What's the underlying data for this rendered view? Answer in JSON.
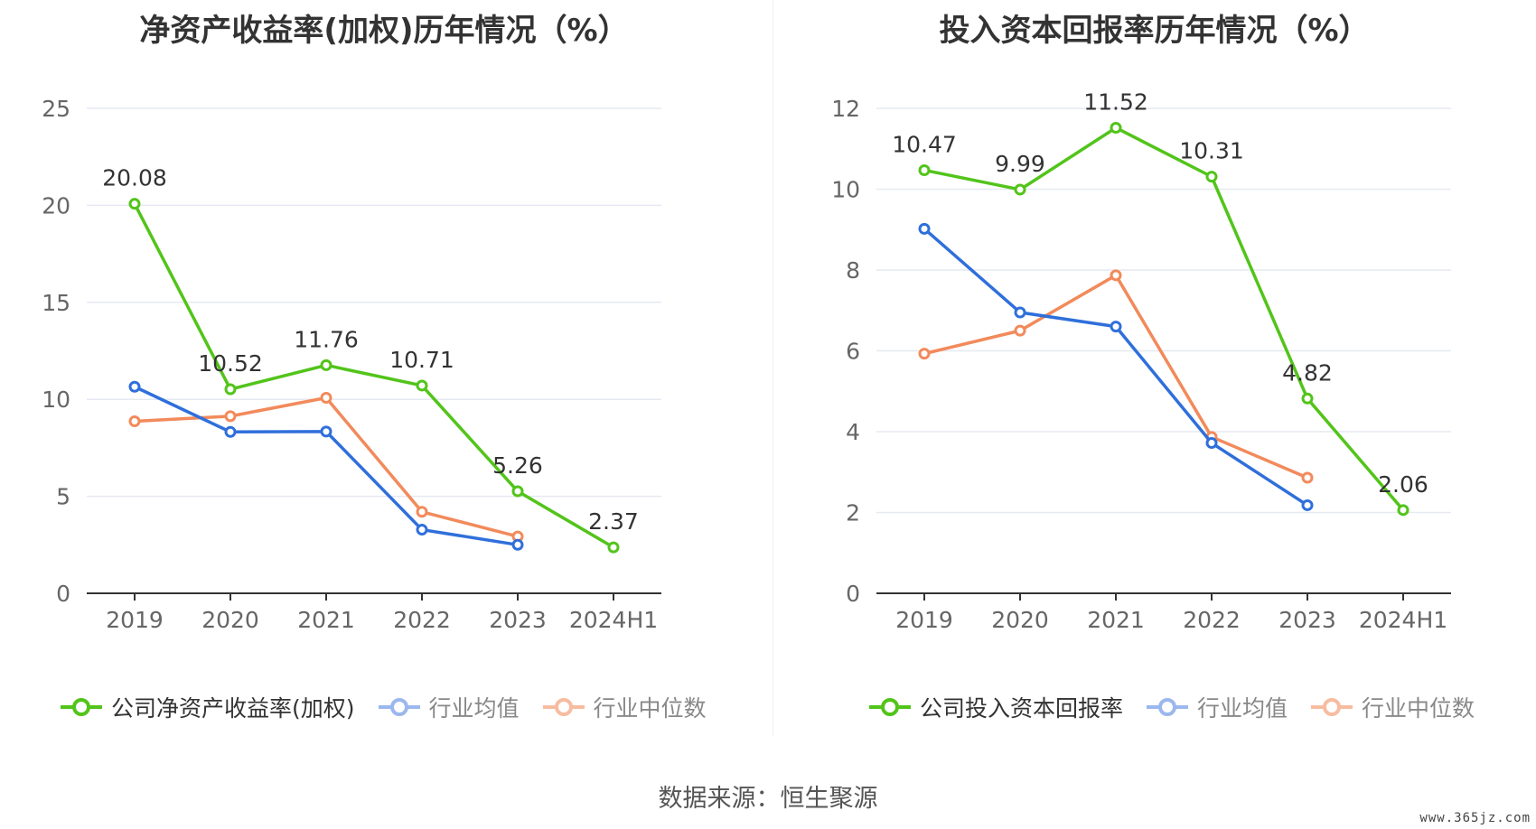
{
  "colors": {
    "company": "#52c41a",
    "avg": "#2f6fdb",
    "median": "#f28a5b",
    "grid": "#e6e9f2",
    "axis": "#333333",
    "tick": "#666666",
    "label": "#333333"
  },
  "chart_data": [
    {
      "type": "line",
      "title": "净资产收益率(加权)历年情况（%）",
      "categories": [
        "2019",
        "2020",
        "2021",
        "2022",
        "2023",
        "2024H1"
      ],
      "ylim": [
        0,
        25
      ],
      "yticks": [
        0,
        5,
        10,
        15,
        20,
        25
      ],
      "grid": true,
      "legend_position": "bottom",
      "series": [
        {
          "name": "公司净资产收益率(加权)",
          "key": "company",
          "values": [
            20.08,
            10.52,
            11.76,
            10.71,
            5.26,
            2.37
          ],
          "labels": true
        },
        {
          "name": "行业均值",
          "key": "avg",
          "values": [
            10.65,
            8.32,
            8.34,
            3.28,
            2.5,
            null
          ]
        },
        {
          "name": "行业中位数",
          "key": "median",
          "values": [
            8.87,
            9.13,
            10.08,
            4.2,
            2.93,
            null
          ]
        }
      ]
    },
    {
      "type": "line",
      "title": "投入资本回报率历年情况（%）",
      "categories": [
        "2019",
        "2020",
        "2021",
        "2022",
        "2023",
        "2024H1"
      ],
      "ylim": [
        0,
        12
      ],
      "yticks": [
        0,
        2,
        4,
        6,
        8,
        10,
        12
      ],
      "grid": true,
      "legend_position": "bottom",
      "series": [
        {
          "name": "公司投入资本回报率",
          "key": "company",
          "values": [
            10.47,
            9.99,
            11.52,
            10.31,
            4.82,
            2.06
          ],
          "labels": true
        },
        {
          "name": "行业均值",
          "key": "avg",
          "values": [
            9.02,
            6.95,
            6.6,
            3.72,
            2.18,
            null
          ]
        },
        {
          "name": "行业中位数",
          "key": "median",
          "values": [
            5.93,
            6.5,
            7.87,
            3.87,
            2.86,
            null
          ]
        }
      ]
    }
  ],
  "source": "数据来源：恒生聚源",
  "watermark": "www.365jz.com"
}
